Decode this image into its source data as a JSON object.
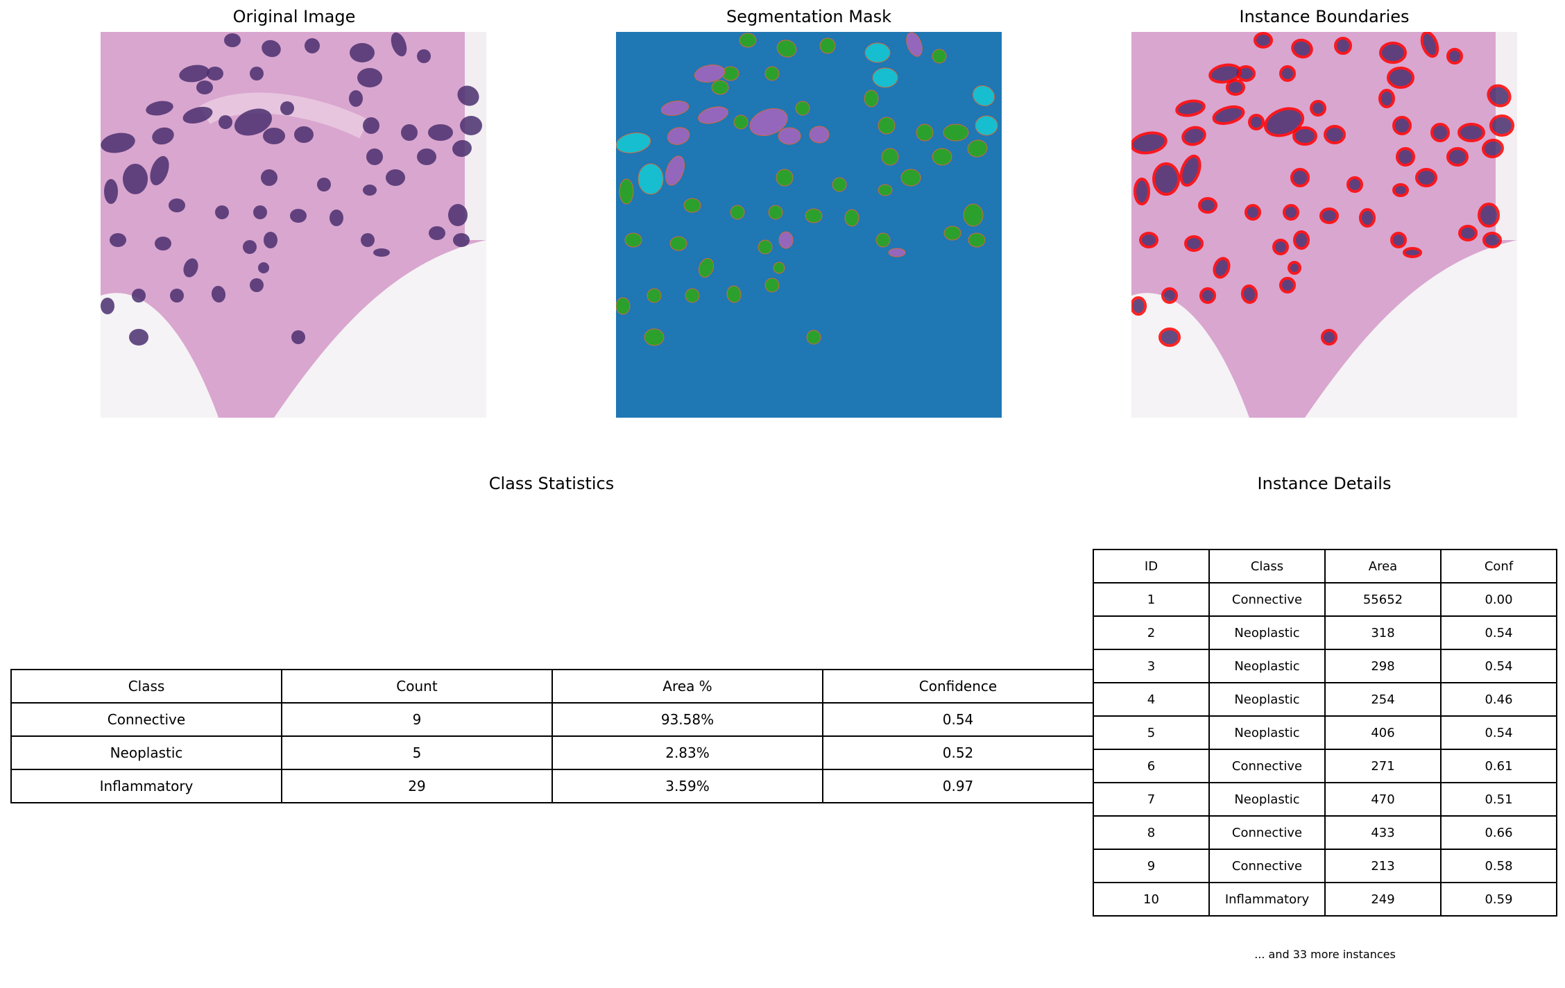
{
  "panels": {
    "original_title": "Original Image",
    "mask_title": "Segmentation Mask",
    "boundaries_title": "Instance Boundaries"
  },
  "colors": {
    "mask_background": "#1f77b4",
    "connective": "#2ca02c",
    "neoplastic": "#9467bd",
    "inflammatory": "#17becf",
    "boundary": "#ff0000",
    "tissue_pink": "#d9a6cf",
    "nucleus": "#4a2f6e"
  },
  "class_statistics": {
    "title": "Class Statistics",
    "headers": [
      "Class",
      "Count",
      "Area %",
      "Confidence"
    ],
    "rows": [
      [
        "Connective",
        "9",
        "93.58%",
        "0.54"
      ],
      [
        "Neoplastic",
        "5",
        "2.83%",
        "0.52"
      ],
      [
        "Inflammatory",
        "29",
        "3.59%",
        "0.97"
      ]
    ]
  },
  "instance_details": {
    "title": "Instance Details",
    "headers": [
      "ID",
      "Class",
      "Area",
      "Conf"
    ],
    "rows": [
      [
        "1",
        "Connective",
        "55652",
        "0.00"
      ],
      [
        "2",
        "Neoplastic",
        "318",
        "0.54"
      ],
      [
        "3",
        "Neoplastic",
        "298",
        "0.54"
      ],
      [
        "4",
        "Neoplastic",
        "254",
        "0.46"
      ],
      [
        "5",
        "Neoplastic",
        "406",
        "0.54"
      ],
      [
        "6",
        "Connective",
        "271",
        "0.61"
      ],
      [
        "7",
        "Neoplastic",
        "470",
        "0.51"
      ],
      [
        "8",
        "Connective",
        "433",
        "0.66"
      ],
      [
        "9",
        "Connective",
        "213",
        "0.58"
      ],
      [
        "10",
        "Inflammatory",
        "249",
        "0.59"
      ]
    ],
    "footnote": "... and 33 more instances"
  }
}
